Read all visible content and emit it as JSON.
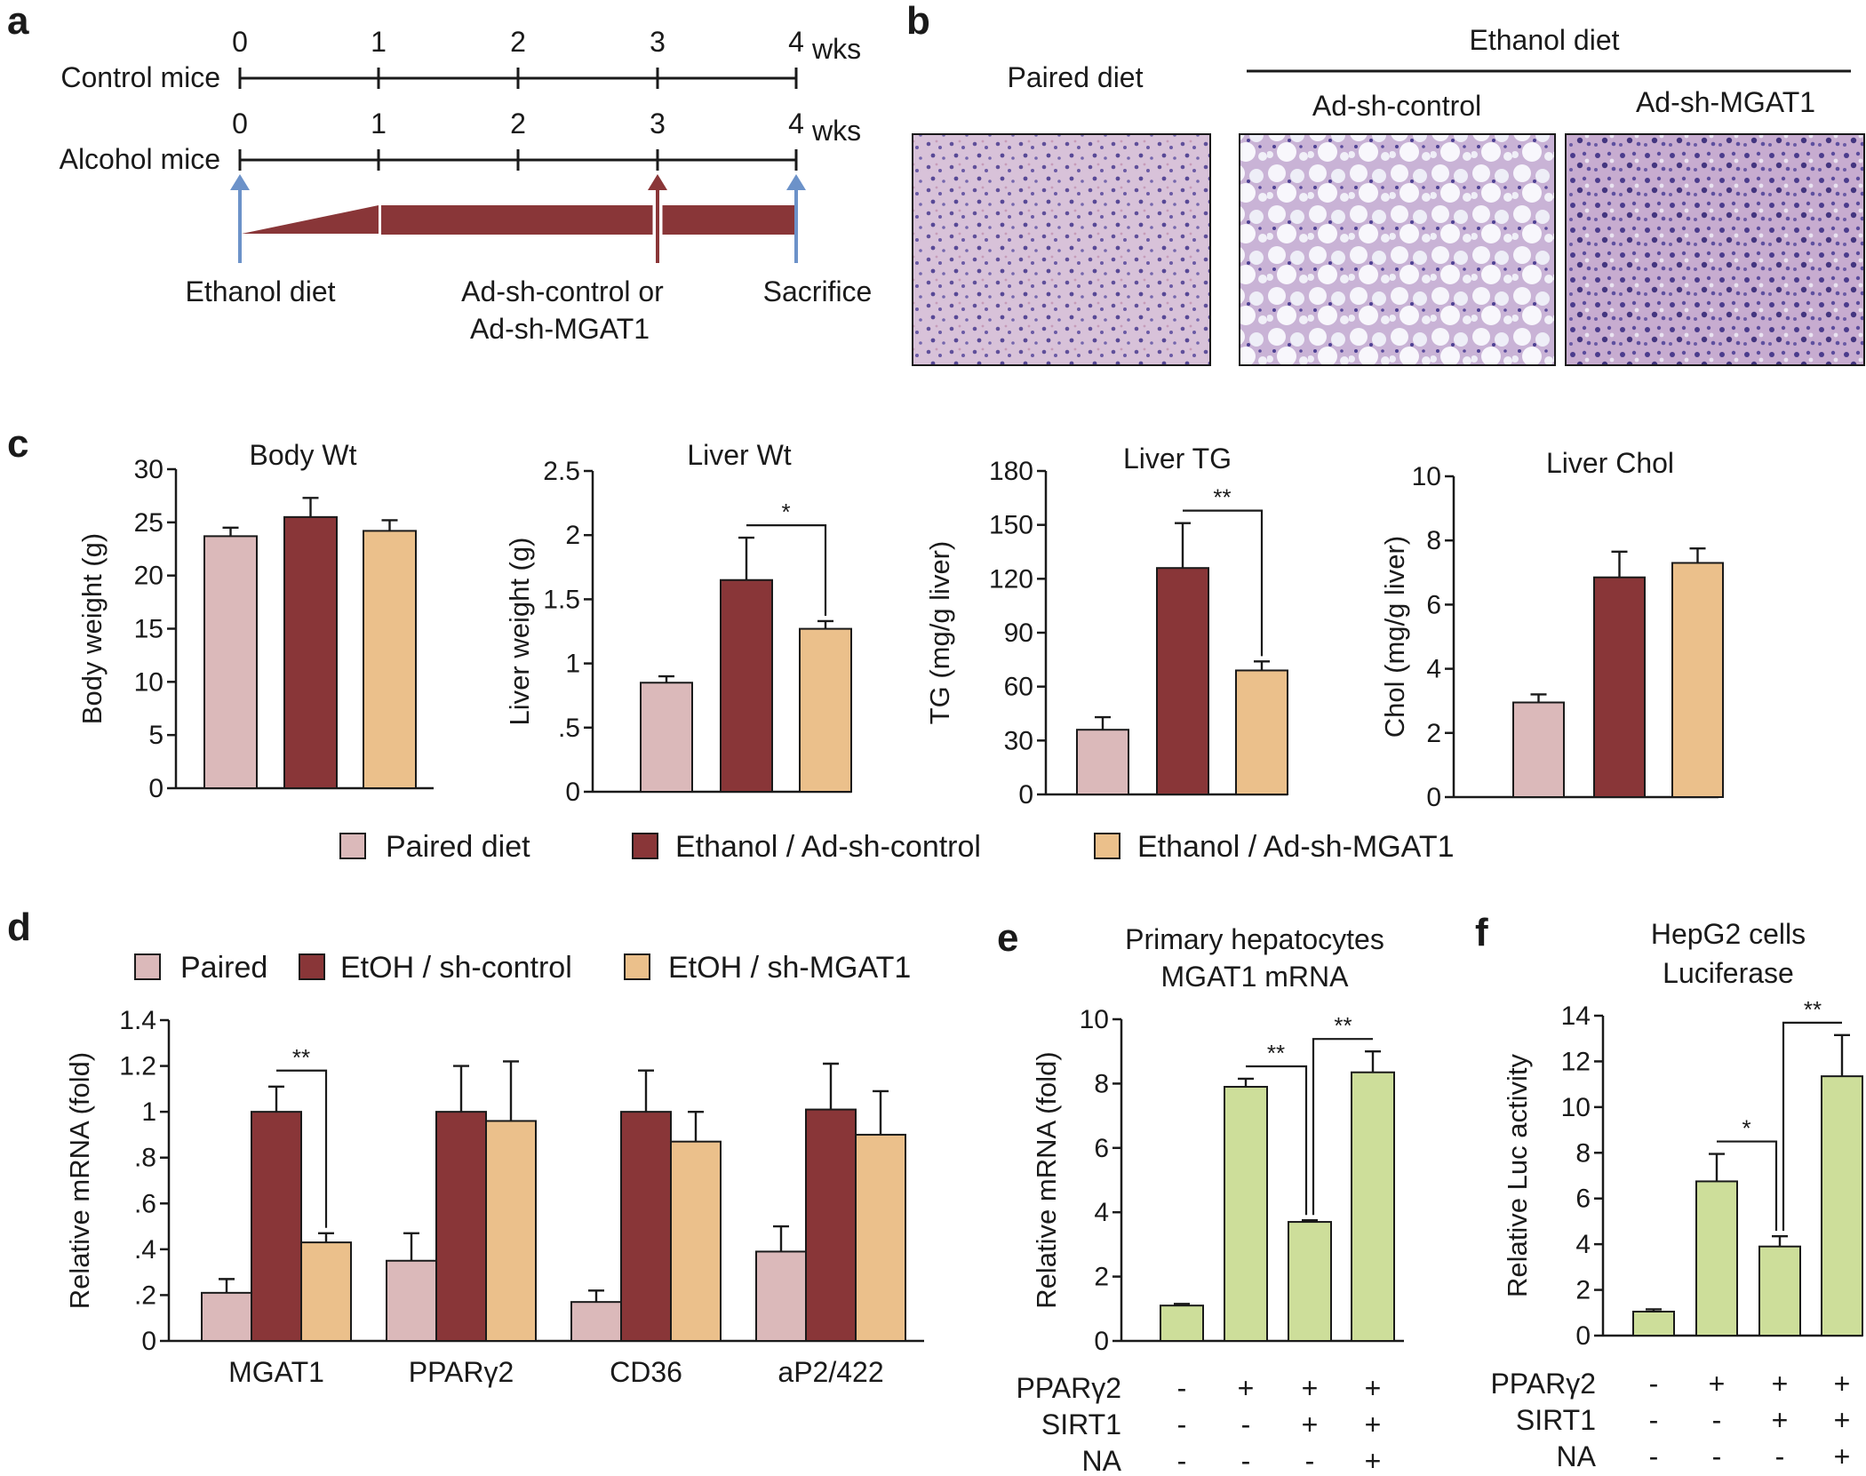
{
  "colors": {
    "paired": "#dbb9ba",
    "etoh_control": "#893638",
    "etoh_mgat1": "#ebc08b",
    "green": "#cdde9a",
    "blue_arrow": "#6c92c9",
    "red_arrow": "#8a3638",
    "histo_bg": "#d4bfdc"
  },
  "panel_labels": {
    "a": "a",
    "b": "b",
    "c": "c",
    "d": "d",
    "e": "e",
    "f": "f"
  },
  "panel_a": {
    "row1_label": "Control mice",
    "row2_label": "Alcohol mice",
    "ticks": [
      "0",
      "1",
      "2",
      "3",
      "4"
    ],
    "unit": "wks",
    "ethanol_diet": "Ethanol diet",
    "treatment_line1": "Ad-sh-control or",
    "treatment_line2": "Ad-sh-MGAT1",
    "sacrifice": "Sacrifice"
  },
  "panel_b": {
    "paired": "Paired diet",
    "ethanol_header": "Ethanol diet",
    "control": "Ad-sh-control",
    "mgat1": "Ad-sh-MGAT1"
  },
  "legend_c": [
    "Paired diet",
    "Ethanol / Ad-sh-control",
    "Ethanol / Ad-sh-MGAT1"
  ],
  "legend_d": [
    "Paired",
    "EtOH / sh-control",
    "EtOH / sh-MGAT1"
  ],
  "chart_data": [
    {
      "id": "c1",
      "type": "bar",
      "title": "Body Wt",
      "ylabel": "Body weight (g)",
      "ylim": [
        0,
        30
      ],
      "yticks": [
        "0",
        "5",
        "10",
        "15",
        "20",
        "25",
        "30"
      ],
      "categories": [
        "Paired diet",
        "Ethanol / Ad-sh-control",
        "Ethanol / Ad-sh-MGAT1"
      ],
      "values": [
        23.7,
        25.5,
        24.2
      ],
      "errors": [
        0.8,
        1.8,
        1.0
      ],
      "significance": []
    },
    {
      "id": "c2",
      "type": "bar",
      "title": "Liver Wt",
      "ylabel": "Liver weight (g)",
      "ylim": [
        0,
        2.5
      ],
      "yticks": [
        "0",
        ".5",
        "1",
        "1.5",
        "2",
        "2.5"
      ],
      "categories": [
        "Paired diet",
        "Ethanol / Ad-sh-control",
        "Ethanol / Ad-sh-MGAT1"
      ],
      "values": [
        0.85,
        1.65,
        1.27
      ],
      "errors": [
        0.05,
        0.33,
        0.06
      ],
      "significance": [
        {
          "label": "*",
          "from": 1,
          "to": 2
        }
      ]
    },
    {
      "id": "c3",
      "type": "bar",
      "title": "Liver TG",
      "ylabel": "TG (mg/g liver)",
      "ylim": [
        0,
        180
      ],
      "yticks": [
        "0",
        "30",
        "60",
        "90",
        "120",
        "150",
        "180"
      ],
      "categories": [
        "Paired diet",
        "Ethanol / Ad-sh-control",
        "Ethanol / Ad-sh-MGAT1"
      ],
      "values": [
        36,
        126,
        69
      ],
      "errors": [
        7,
        25,
        5
      ],
      "significance": [
        {
          "label": "**",
          "from": 1,
          "to": 2
        }
      ]
    },
    {
      "id": "c4",
      "type": "bar",
      "title": "Liver Chol",
      "ylabel": "Chol (mg/g liver)",
      "ylim": [
        0,
        10
      ],
      "yticks": [
        "0",
        "2",
        "4",
        "6",
        "8",
        "10"
      ],
      "categories": [
        "Paired diet",
        "Ethanol / Ad-sh-control",
        "Ethanol / Ad-sh-MGAT1"
      ],
      "values": [
        2.95,
        6.85,
        7.3
      ],
      "errors": [
        0.25,
        0.8,
        0.45
      ],
      "significance": []
    },
    {
      "id": "d",
      "type": "bar",
      "title": "",
      "ylabel": "Relative mRNA (fold)",
      "ylim": [
        0,
        1.4
      ],
      "yticks": [
        "0",
        ".2",
        ".4",
        ".6",
        ".8",
        "1",
        "1.2",
        "1.4"
      ],
      "categories": [
        "MGAT1",
        "PPARγ2",
        "CD36",
        "aP2/422"
      ],
      "series": [
        {
          "name": "Paired",
          "values": [
            0.21,
            0.35,
            0.17,
            0.39
          ],
          "errors": [
            0.06,
            0.12,
            0.05,
            0.11
          ]
        },
        {
          "name": "EtOH / sh-control",
          "values": [
            1.0,
            1.0,
            1.0,
            1.01
          ],
          "errors": [
            0.11,
            0.2,
            0.18,
            0.2
          ]
        },
        {
          "name": "EtOH / sh-MGAT1",
          "values": [
            0.43,
            0.96,
            0.87,
            0.9
          ],
          "errors": [
            0.04,
            0.26,
            0.13,
            0.19
          ]
        }
      ],
      "significance": [
        {
          "label": "**",
          "group": 0,
          "from": 1,
          "to": 2
        }
      ]
    },
    {
      "id": "e",
      "type": "bar",
      "title": "Primary hepatocytes",
      "subtitle": "MGAT1 mRNA",
      "ylabel": "Relative mRNA (fold)",
      "ylim": [
        0,
        10
      ],
      "yticks": [
        "0",
        "2",
        "4",
        "6",
        "8",
        "10"
      ],
      "values": [
        1.1,
        7.9,
        3.7,
        8.35
      ],
      "errors": [
        0.05,
        0.25,
        0.05,
        0.65
      ],
      "conditions": [
        {
          "name": "PPARγ2",
          "signs": [
            "-",
            "+",
            "+",
            "+"
          ]
        },
        {
          "name": "SIRT1",
          "signs": [
            "-",
            "-",
            "+",
            "+"
          ]
        },
        {
          "name": "NA",
          "signs": [
            "-",
            "-",
            "-",
            "+"
          ]
        }
      ],
      "significance": [
        {
          "label": "**",
          "from": 1,
          "to": 2,
          "level": 0
        },
        {
          "label": "**",
          "from": 2,
          "to": 3,
          "level": 1
        }
      ]
    },
    {
      "id": "f",
      "type": "bar",
      "title": "HepG2 cells",
      "subtitle": "Luciferase",
      "ylabel": "Relative Luc activity",
      "ylim": [
        0,
        14
      ],
      "yticks": [
        "0",
        "2",
        "4",
        "6",
        "8",
        "10",
        "12",
        "14"
      ],
      "values": [
        1.05,
        6.75,
        3.9,
        11.35
      ],
      "errors": [
        0.1,
        1.2,
        0.45,
        1.8
      ],
      "conditions": [
        {
          "name": "PPARγ2",
          "signs": [
            "-",
            "+",
            "+",
            "+"
          ]
        },
        {
          "name": "SIRT1",
          "signs": [
            "-",
            "-",
            "+",
            "+"
          ]
        },
        {
          "name": "NA",
          "signs": [
            "-",
            "-",
            "-",
            "+"
          ]
        }
      ],
      "significance": [
        {
          "label": "*",
          "from": 1,
          "to": 2,
          "level": 0
        },
        {
          "label": "**",
          "from": 2,
          "to": 3,
          "level": 1
        }
      ]
    }
  ]
}
